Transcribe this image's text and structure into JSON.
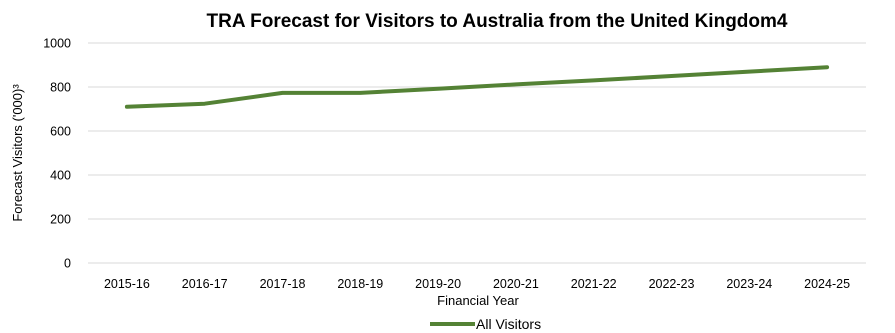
{
  "chart_data": {
    "type": "line",
    "title": "TRA Forecast for Visitors to Australia from  the United Kingdom4",
    "xlabel": "Financial Year",
    "ylabel": "Forecast Visitors ('000)³",
    "categories": [
      "2015-16",
      "2016-17",
      "2017-18",
      "2018-19",
      "2019-20",
      "2020-21",
      "2021-22",
      "2022-23",
      "2023-24",
      "2024-25"
    ],
    "ylim": [
      0,
      1000
    ],
    "yticks": [
      0,
      200,
      400,
      600,
      800,
      1000
    ],
    "grid": true,
    "legend_position": "bottom",
    "series": [
      {
        "name": "All Visitors",
        "color": "#548235",
        "values": [
          710,
          724,
          773,
          773,
          792,
          812,
          830,
          850,
          870,
          890
        ]
      }
    ]
  }
}
